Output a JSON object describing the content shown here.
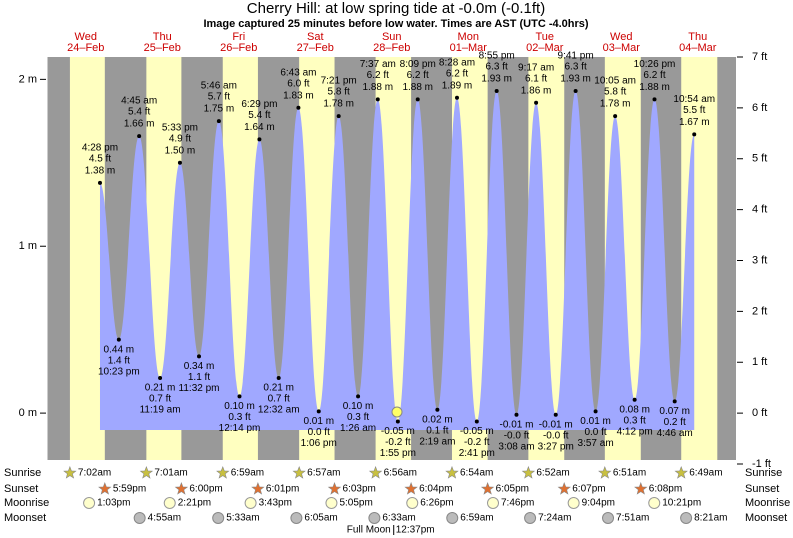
{
  "chart_data": {
    "type": "area",
    "title": "Cherry Hill: at low  spring tide at -0.0m (-0.1ft)",
    "subtitle": "Image captured 25 minutes before low water. Times are AST (UTC -4.0hrs)",
    "color": "#a0a8ff",
    "ylim": [
      -0.305,
      2.134
    ],
    "yticks": [
      {
        "value": 0,
        "label": "0 m"
      },
      {
        "value": 1,
        "label": "1 m"
      },
      {
        "value": 2,
        "label": "2 m"
      }
    ],
    "y2lim": [
      -1,
      7
    ],
    "y2ticks": [
      {
        "value": -1,
        "label": "-1 ft"
      },
      {
        "value": 0,
        "label": "0 ft"
      },
      {
        "value": 1,
        "label": "1 ft"
      },
      {
        "value": 2,
        "label": "2 ft"
      },
      {
        "value": 3,
        "label": "3 ft"
      },
      {
        "value": 4,
        "label": "4 ft"
      },
      {
        "value": 5,
        "label": "5 ft"
      },
      {
        "value": 6,
        "label": "6 ft"
      },
      {
        "value": 7,
        "label": "7 ft"
      }
    ],
    "row_labels": {
      "sunrise": "Sunrise",
      "sunset": "Sunset",
      "moonrise": "Moonrise",
      "moonset": "Moonset"
    },
    "days": [
      {
        "weekday": "Wed",
        "date": "24–Feb",
        "sunrise": "7:02am",
        "sunset": "5:59pm",
        "moonrise": "1:03pm",
        "tides": [
          {
            "time": "4:28 pm",
            "feet_label": "4.5 ft",
            "height": 1.38,
            "height_label": "1.38 m"
          },
          {
            "time": "10:23 pm",
            "feet_label": "1.4 ft",
            "height": 0.44,
            "height_label": "0.44 m"
          }
        ]
      },
      {
        "weekday": "Thu",
        "date": "25–Feb",
        "sunrise": "7:01am",
        "sunset": "6:00pm",
        "moonrise": "2:21pm",
        "moonset": "4:55am",
        "tides": [
          {
            "time": "4:45 am",
            "feet_label": "5.4 ft",
            "height": 1.66,
            "height_label": "1.66 m"
          },
          {
            "time": "11:19 am",
            "feet_label": "0.7 ft",
            "height": 0.21,
            "height_label": "0.21 m"
          },
          {
            "time": "5:33 pm",
            "feet_label": "4.9 ft",
            "height": 1.5,
            "height_label": "1.50 m"
          },
          {
            "time": "11:32 pm",
            "feet_label": "1.1 ft",
            "height": 0.34,
            "height_label": "0.34 m"
          }
        ]
      },
      {
        "weekday": "Fri",
        "date": "26–Feb",
        "sunrise": "6:59am",
        "sunset": "6:01pm",
        "moonrise": "3:43pm",
        "moonset": "5:33am",
        "tides": [
          {
            "time": "5:46 am",
            "feet_label": "5.7 ft",
            "height": 1.75,
            "height_label": "1.75 m"
          },
          {
            "time": "12:14 pm",
            "feet_label": "0.3 ft",
            "height": 0.1,
            "height_label": "0.10 m"
          },
          {
            "time": "6:29 pm",
            "feet_label": "5.4 ft",
            "height": 1.64,
            "height_label": "1.64 m"
          }
        ]
      },
      {
        "weekday": "Sat",
        "date": "27–Feb",
        "sunrise": "6:57am",
        "sunset": "6:03pm",
        "moonrise": "5:05pm",
        "moonset": "6:05am",
        "tides": [
          {
            "time": "12:32 am",
            "feet_label": "0.7 ft",
            "height": 0.21,
            "height_label": "0.21 m"
          },
          {
            "time": "6:43 am",
            "feet_label": "6.0 ft",
            "height": 1.83,
            "height_label": "1.83 m"
          },
          {
            "time": "1:06 pm",
            "feet_label": "0.0 ft",
            "height": 0.01,
            "height_label": "0.01 m"
          },
          {
            "time": "7:21 pm",
            "feet_label": "5.8 ft",
            "height": 1.78,
            "height_label": "1.78 m"
          }
        ]
      },
      {
        "weekday": "Sun",
        "date": "28–Feb",
        "sunrise": "6:56am",
        "sunset": "6:04pm",
        "moonrise": "6:26pm",
        "moonset": "6:33am",
        "moon_phase": "Full Moon",
        "moon_phase_time": "12:37pm",
        "tides": [
          {
            "time": "1:26 am",
            "feet_label": "0.3 ft",
            "height": 0.1,
            "height_label": "0.10 m"
          },
          {
            "time": "7:37 am",
            "feet_label": "6.2 ft",
            "height": 1.88,
            "height_label": "1.88 m"
          },
          {
            "time": "1:55 pm",
            "feet_label": "-0.2 ft",
            "height": -0.05,
            "height_label": "-0.05 m"
          },
          {
            "time": "8:09 pm",
            "feet_label": "6.2 ft",
            "height": 1.88,
            "height_label": "1.88 m"
          }
        ]
      },
      {
        "weekday": "Mon",
        "date": "01–Mar",
        "sunrise": "6:54am",
        "sunset": "6:05pm",
        "moonrise": "7:46pm",
        "moonset": "6:59am",
        "tides": [
          {
            "time": "2:19 am",
            "feet_label": "0.1 ft",
            "height": 0.02,
            "height_label": "0.02 m"
          },
          {
            "time": "8:28 am",
            "feet_label": "6.2 ft",
            "height": 1.89,
            "height_label": "1.89 m"
          },
          {
            "time": "2:41 pm",
            "feet_label": "-0.2 ft",
            "height": -0.05,
            "height_label": "-0.05 m"
          },
          {
            "time": "8:55 pm",
            "feet_label": "6.3 ft",
            "height": 1.93,
            "height_label": "1.93 m"
          }
        ]
      },
      {
        "weekday": "Tue",
        "date": "02–Mar",
        "sunrise": "6:52am",
        "sunset": "6:07pm",
        "moonrise": "9:04pm",
        "moonset": "7:24am",
        "tides": [
          {
            "time": "3:08 am",
            "feet_label": "-0.0 ft",
            "height": -0.01,
            "height_label": "-0.01 m"
          },
          {
            "time": "9:17 am",
            "feet_label": "6.1 ft",
            "height": 1.86,
            "height_label": "1.86 m"
          },
          {
            "time": "3:27 pm",
            "feet_label": "-0.0 ft",
            "height": -0.01,
            "height_label": "-0.01 m"
          },
          {
            "time": "9:41 pm",
            "feet_label": "6.3 ft",
            "height": 1.93,
            "height_label": "1.93 m"
          }
        ]
      },
      {
        "weekday": "Wed",
        "date": "03–Mar",
        "sunrise": "6:51am",
        "sunset": "6:08pm",
        "moonrise": "10:21pm",
        "moonset": "7:51am",
        "tides": [
          {
            "time": "3:57 am",
            "feet_label": "0.0 ft",
            "height": 0.01,
            "height_label": "0.01 m"
          },
          {
            "time": "10:05 am",
            "feet_label": "5.8 ft",
            "height": 1.78,
            "height_label": "1.78 m"
          },
          {
            "time": "4:12 pm",
            "feet_label": "0.3 ft",
            "height": 0.08,
            "height_label": "0.08 m"
          },
          {
            "time": "10:26 pm",
            "feet_label": "6.2 ft",
            "height": 1.88,
            "height_label": "1.88 m"
          }
        ]
      },
      {
        "weekday": "Thu",
        "date": "04–Mar",
        "sunrise": "6:49am",
        "moonset": "8:21am",
        "tides": [
          {
            "time": "4:46 am",
            "feet_label": "0.2 ft",
            "height": 0.07,
            "height_label": "0.07 m"
          },
          {
            "time": "10:54 am",
            "feet_label": "5.5 ft",
            "height": 1.67,
            "height_label": "1.67 m"
          }
        ]
      }
    ]
  }
}
